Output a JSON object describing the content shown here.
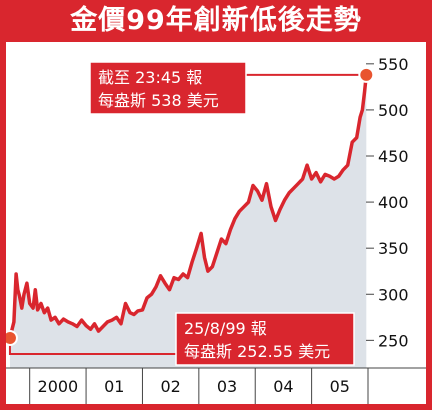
{
  "title": "金價99年創新低後走勢",
  "colors": {
    "frame": "#d9262e",
    "line": "#d9262e",
    "area": "#dde2e8",
    "text": "#111111"
  },
  "chart_data": {
    "type": "line",
    "title": "金價99年創新低後走勢",
    "xlabel": "",
    "ylabel": "",
    "ylim": [
      220,
      565
    ],
    "y_ticks": [
      250,
      300,
      350,
      400,
      450,
      500,
      550
    ],
    "y_axis_position": "right",
    "x_range": [
      1999.58,
      2006.0
    ],
    "x_ticks": [
      {
        "label": "2000",
        "x": 2000.5
      },
      {
        "label": "01",
        "x": 2001.5
      },
      {
        "label": "02",
        "x": 2002.5
      },
      {
        "label": "03",
        "x": 2003.5
      },
      {
        "label": "04",
        "x": 2004.5
      },
      {
        "label": "05",
        "x": 2005.5
      }
    ],
    "grid": false,
    "series": [
      {
        "x": [
          1999.65,
          1999.72,
          1999.76,
          1999.79,
          1999.82,
          1999.86,
          1999.9,
          1999.95,
          2000.0,
          2000.06,
          2000.1,
          2000.14,
          2000.2,
          2000.26,
          2000.32,
          2000.38,
          2000.45,
          2000.52,
          2000.6,
          2000.68,
          2000.76,
          2000.84,
          2000.92,
          2001.0,
          2001.08,
          2001.15,
          2001.22,
          2001.3,
          2001.38,
          2001.46,
          2001.54,
          2001.62,
          2001.7,
          2001.78,
          2001.85,
          2001.92,
          2002.0,
          2002.08,
          2002.16,
          2002.24,
          2002.32,
          2002.4,
          2002.48,
          2002.56,
          2002.64,
          2002.72,
          2002.8,
          2002.88,
          2002.96,
          2003.04,
          2003.1,
          2003.16,
          2003.24,
          2003.32,
          2003.4,
          2003.48,
          2003.56,
          2003.64,
          2003.72,
          2003.8,
          2003.88,
          2003.96,
          2004.04,
          2004.12,
          2004.2,
          2004.28,
          2004.36,
          2004.44,
          2004.52,
          2004.6,
          2004.68,
          2004.76,
          2004.84,
          2004.92,
          2005.0,
          2005.08,
          2005.16,
          2005.24,
          2005.32,
          2005.4,
          2005.48,
          2005.56,
          2005.64,
          2005.72,
          2005.8,
          2005.86,
          2005.9,
          2005.94,
          2005.97
        ],
        "values": [
          252.55,
          270,
          322,
          305,
          298,
          285,
          300,
          312,
          290,
          285,
          305,
          283,
          290,
          280,
          285,
          272,
          275,
          268,
          273,
          270,
          268,
          265,
          272,
          266,
          262,
          268,
          260,
          265,
          270,
          272,
          275,
          268,
          290,
          280,
          278,
          282,
          283,
          296,
          300,
          308,
          320,
          312,
          305,
          318,
          316,
          322,
          318,
          335,
          350,
          366,
          340,
          325,
          330,
          345,
          360,
          355,
          370,
          382,
          390,
          395,
          400,
          418,
          412,
          402,
          420,
          395,
          380,
          392,
          402,
          410,
          415,
          420,
          425,
          440,
          425,
          432,
          422,
          430,
          428,
          425,
          428,
          435,
          440,
          465,
          470,
          492,
          500,
          520,
          538
        ]
      }
    ],
    "start_point": {
      "x": 1999.65,
      "y": 252.55
    },
    "end_point": {
      "x": 2005.97,
      "y": 538
    }
  },
  "annotations": {
    "top": {
      "line1": "截至 23:45 報",
      "line2": "每盎斯 538 美元"
    },
    "bottom": {
      "line1": "25/8/99 報",
      "line2": "每盎斯 252.55 美元"
    }
  }
}
